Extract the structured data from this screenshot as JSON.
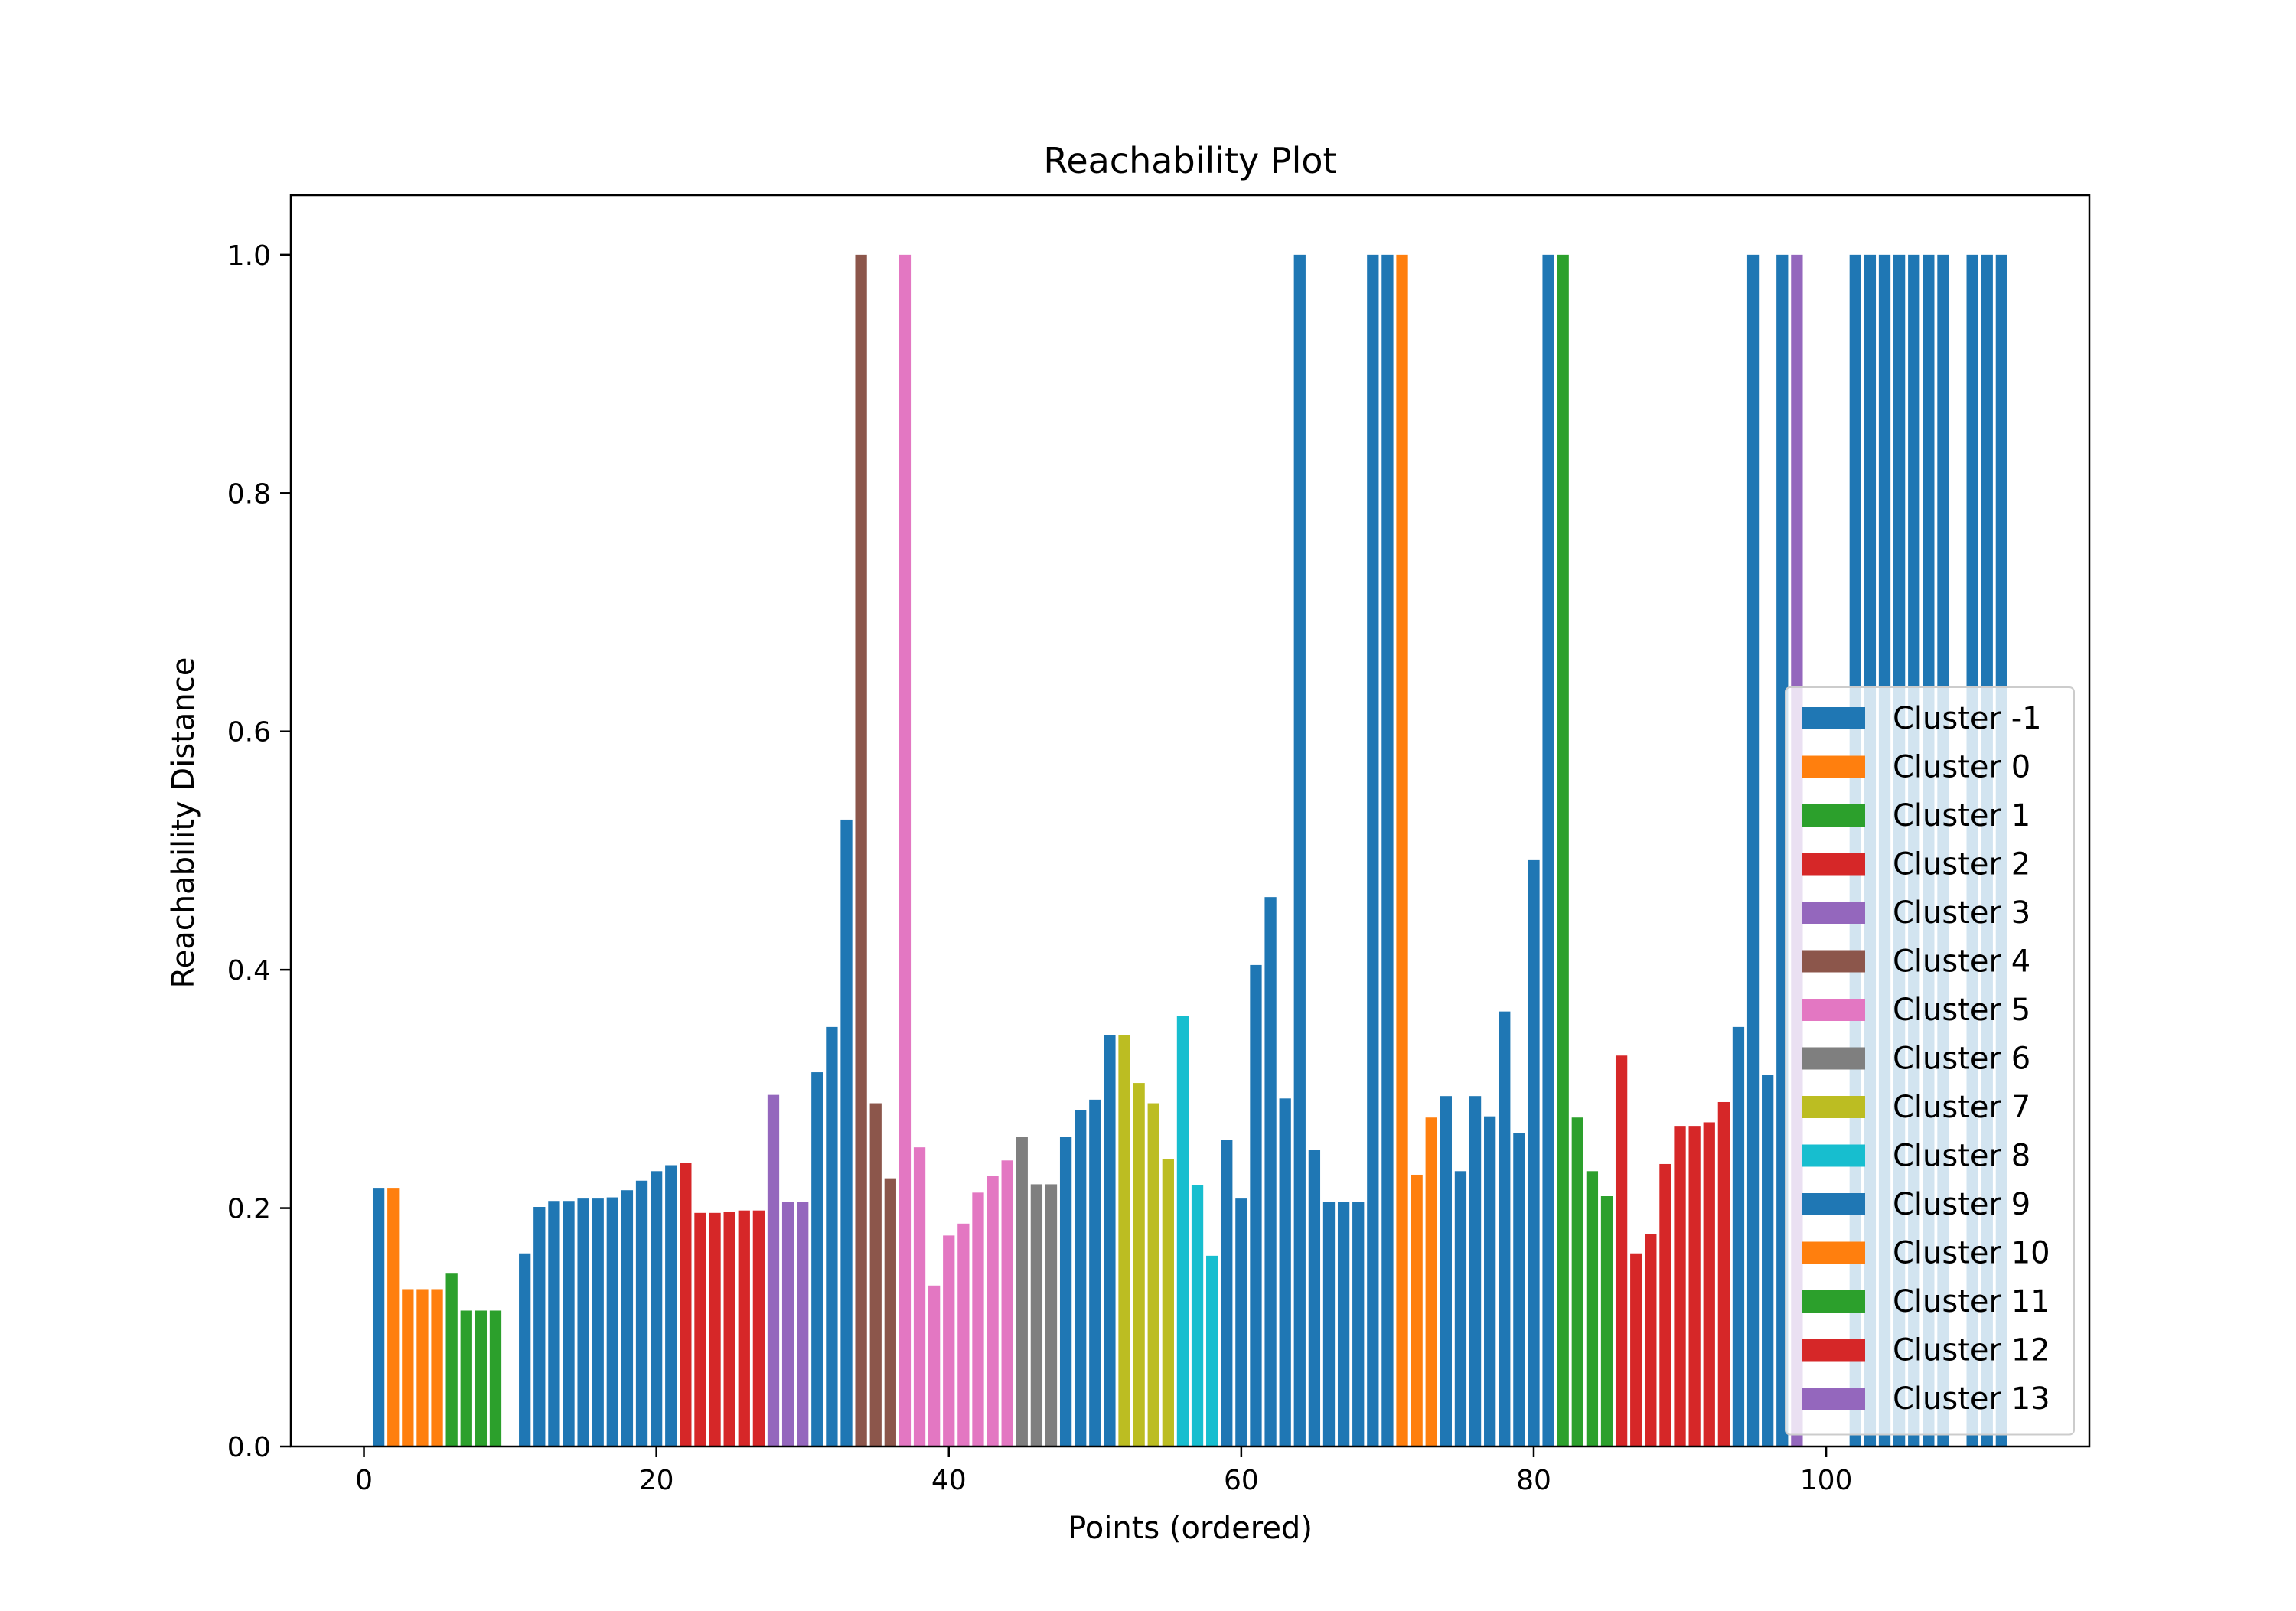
{
  "chart_data": {
    "type": "bar",
    "title": "Reachability Plot",
    "xlabel": "Points (ordered)",
    "ylabel": "Reachability Distance",
    "xlim": [
      -5,
      118
    ],
    "ylim": [
      0,
      1.05
    ],
    "xticks": [
      0,
      20,
      40,
      60,
      80,
      100
    ],
    "yticks": [
      0.0,
      0.2,
      0.4,
      0.6,
      0.8,
      1.0
    ],
    "xtick_labels": [
      "0",
      "20",
      "40",
      "60",
      "80",
      "100"
    ],
    "ytick_labels": [
      "0.0",
      "0.2",
      "0.4",
      "0.6",
      "0.8",
      "1.0"
    ],
    "grid": false,
    "legend_position": "lower-right",
    "series": [
      {
        "name": "Cluster -1",
        "color": "#1f77b4",
        "x": [
          1,
          11,
          12,
          13,
          14,
          15,
          16,
          17,
          18,
          19,
          20,
          21,
          31,
          32,
          33,
          64,
          69,
          70,
          81,
          95,
          97,
          102,
          103,
          104,
          105,
          106,
          107,
          108,
          110,
          111,
          112
        ],
        "values": [
          0.217,
          0.162,
          0.201,
          0.206,
          0.206,
          0.208,
          0.208,
          0.209,
          0.215,
          0.223,
          0.231,
          0.236,
          0.314,
          0.352,
          0.526,
          1.0,
          1.0,
          1.0,
          1.0,
          1.0,
          1.0,
          1.0,
          1.0,
          1.0,
          1.0,
          1.0,
          1.0,
          1.0,
          1.0,
          1.0,
          1.0
        ]
      },
      {
        "name": "Cluster 0",
        "color": "#ff7f0e",
        "x": [
          2,
          3,
          4,
          5
        ],
        "values": [
          0.217,
          0.132,
          0.132,
          0.132
        ]
      },
      {
        "name": "Cluster 1",
        "color": "#2ca02c",
        "x": [
          6,
          7,
          8,
          9
        ],
        "values": [
          0.145,
          0.114,
          0.114,
          0.114
        ]
      },
      {
        "name": "Cluster 2",
        "color": "#d62728",
        "x": [
          22,
          23,
          24,
          25,
          26,
          27
        ],
        "values": [
          0.238,
          0.196,
          0.196,
          0.197,
          0.198,
          0.198
        ]
      },
      {
        "name": "Cluster 3",
        "color": "#9467bd",
        "x": [
          28,
          29,
          30
        ],
        "values": [
          0.295,
          0.205,
          0.205
        ]
      },
      {
        "name": "Cluster 4",
        "color": "#8c564b",
        "x": [
          34,
          35,
          36
        ],
        "values": [
          1.0,
          0.288,
          0.225
        ]
      },
      {
        "name": "Cluster 5",
        "color": "#e377c2",
        "x": [
          37,
          38,
          39,
          40,
          41,
          42,
          43,
          44
        ],
        "values": [
          1.0,
          0.251,
          0.135,
          0.177,
          0.187,
          0.213,
          0.227,
          0.24
        ]
      },
      {
        "name": "Cluster 6",
        "color": "#7f7f7f",
        "x": [
          45,
          46,
          47
        ],
        "values": [
          0.26,
          0.22,
          0.22
        ]
      },
      {
        "name": "Cluster 7",
        "color": "#bcbd22",
        "x": [
          52,
          53,
          54,
          55
        ],
        "values": [
          0.345,
          0.305,
          0.288,
          0.241
        ]
      },
      {
        "name": "Cluster 8",
        "color": "#17becf",
        "x": [
          56,
          57,
          58
        ],
        "values": [
          0.361,
          0.219,
          0.16
        ]
      },
      {
        "name": "Cluster 9",
        "color": "#1f77b4",
        "x": [
          48,
          49,
          50,
          51,
          59,
          60,
          61,
          62,
          63,
          65,
          66,
          67,
          68,
          74,
          75,
          76,
          77,
          78,
          79,
          80,
          94,
          96
        ],
        "values": [
          0.26,
          0.282,
          0.291,
          0.345,
          0.257,
          0.208,
          0.404,
          0.461,
          0.292,
          0.249,
          0.205,
          0.205,
          0.205,
          0.294,
          0.231,
          0.294,
          0.277,
          0.365,
          0.263,
          0.492,
          0.352,
          0.312
        ]
      },
      {
        "name": "Cluster 10",
        "color": "#ff7f0e",
        "x": [
          71,
          72,
          73
        ],
        "values": [
          1.0,
          0.228,
          0.276
        ]
      },
      {
        "name": "Cluster 11",
        "color": "#2ca02c",
        "x": [
          82,
          83,
          84,
          85
        ],
        "values": [
          1.0,
          0.276,
          0.231,
          0.21
        ]
      },
      {
        "name": "Cluster 12",
        "color": "#d62728",
        "x": [
          86,
          87,
          88,
          89,
          90,
          91,
          92,
          93
        ],
        "values": [
          0.328,
          0.162,
          0.178,
          0.237,
          0.269,
          0.269,
          0.272,
          0.289
        ]
      },
      {
        "name": "Cluster 13",
        "color": "#9467bd",
        "x": [
          98
        ],
        "values": [
          1.0
        ]
      }
    ]
  }
}
